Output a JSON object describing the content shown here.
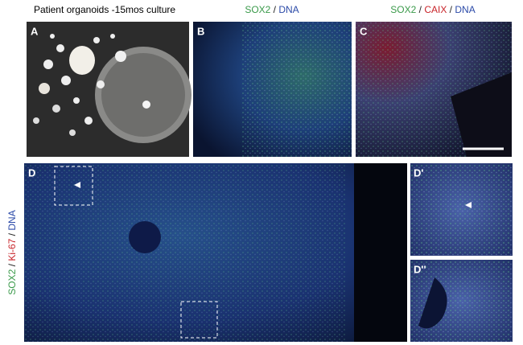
{
  "figure": {
    "title": "Patient organoids -15mos culture",
    "headers": [
      {
        "panel": "B",
        "segments": [
          {
            "text": "SOX2",
            "color": "#3a9a4a"
          },
          {
            "text": " / ",
            "color": "#222222"
          },
          {
            "text": "DNA",
            "color": "#2b4aa8"
          }
        ]
      },
      {
        "panel": "C",
        "segments": [
          {
            "text": "SOX2",
            "color": "#3a9a4a"
          },
          {
            "text": " / ",
            "color": "#222222"
          },
          {
            "text": "CAIX",
            "color": "#c8242a"
          },
          {
            "text": " / ",
            "color": "#222222"
          },
          {
            "text": "DNA",
            "color": "#2b4aa8"
          }
        ]
      }
    ],
    "side_label": {
      "segments": [
        {
          "text": "SOX2",
          "color": "#3a9a4a"
        },
        {
          "text": " / ",
          "color": "#222222"
        },
        {
          "text": "Ki-67",
          "color": "#c8242a"
        },
        {
          "text": " / ",
          "color": "#222222"
        },
        {
          "text": "DNA",
          "color": "#2b4aa8"
        }
      ]
    },
    "panels": [
      "A",
      "B",
      "C",
      "D",
      "D'",
      "D''"
    ]
  }
}
